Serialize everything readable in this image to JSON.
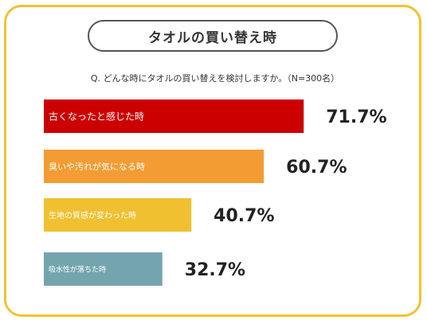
{
  "title": "タオルの買い替え時",
  "question": "Q. どんな時にタオルの買い替えを検討しますか。（N=300名）",
  "chart_data": {
    "type": "bar",
    "orientation": "horizontal",
    "categories": [
      "古くなったと感じた時",
      "臭いや汚れが気になる時",
      "生地の質感が変わった時",
      "吸水性が落ちた時"
    ],
    "values": [
      71.7,
      60.7,
      40.7,
      32.7
    ],
    "value_labels": [
      "71.7%",
      "60.7%",
      "40.7%",
      "32.7%"
    ],
    "colors": [
      "#cc0000",
      "#f39c33",
      "#f0c030",
      "#74a5af"
    ],
    "xlim": [
      0,
      100
    ],
    "grid": false,
    "legend": "none"
  }
}
